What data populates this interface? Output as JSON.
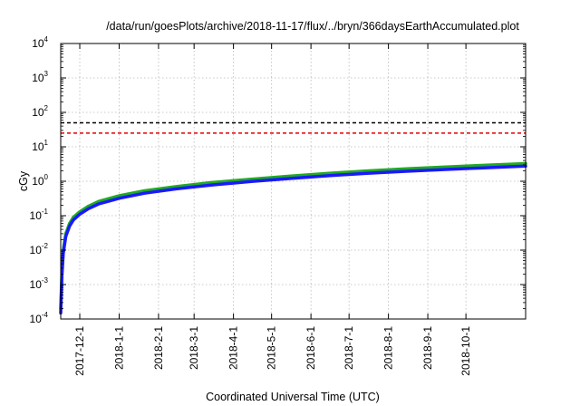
{
  "chart_data": {
    "type": "line",
    "title": "/data/run/goesPlots/archive/2018-11-17/flux/../bryn/366daysEarthAccumulated.plot",
    "xlabel": "Coordinated Universal Time (UTC)",
    "ylabel": "cGy",
    "x_range": [
      "2017-11-16",
      "2018-11-17"
    ],
    "ylim": [
      0.0001,
      10000
    ],
    "y_scale": "log",
    "grid": true,
    "x_ticks": [
      "2017-12-1",
      "2018-1-1",
      "2018-2-1",
      "2018-3-1",
      "2018-4-1",
      "2018-5-1",
      "2018-6-1",
      "2018-7-1",
      "2018-8-1",
      "2018-9-1",
      "2018-10-1"
    ],
    "y_ticks": [
      {
        "value": 0.0001,
        "base": "10",
        "exp": "-4"
      },
      {
        "value": 0.001,
        "base": "10",
        "exp": "-3"
      },
      {
        "value": 0.01,
        "base": "10",
        "exp": "-2"
      },
      {
        "value": 0.1,
        "base": "10",
        "exp": "-1"
      },
      {
        "value": 1,
        "base": "10",
        "exp": "0"
      },
      {
        "value": 10,
        "base": "10",
        "exp": "1"
      },
      {
        "value": 100,
        "base": "10",
        "exp": "2"
      },
      {
        "value": 1000,
        "base": "10",
        "exp": "3"
      },
      {
        "value": 10000,
        "base": "10",
        "exp": "4"
      }
    ],
    "series": [
      {
        "color": "#1a1aff",
        "x": [
          "2017-11-16",
          "2017-11-17",
          "2017-11-18",
          "2017-11-20",
          "2017-11-23",
          "2017-11-26",
          "2017-12-1",
          "2017-12-8",
          "2017-12-16",
          "2018-1-1",
          "2018-1-21",
          "2018-2-15",
          "2018-3-15",
          "2018-4-15",
          "2018-5-15",
          "2018-6-15",
          "2018-7-15",
          "2018-8-15",
          "2018-9-15",
          "2018-10-15",
          "2018-11-17"
        ],
        "values": [
          0.00015,
          0.002,
          0.008,
          0.025,
          0.05,
          0.075,
          0.11,
          0.16,
          0.22,
          0.32,
          0.45,
          0.6,
          0.78,
          0.98,
          1.2,
          1.45,
          1.7,
          1.95,
          2.2,
          2.45,
          2.75
        ]
      },
      {
        "color": "#22aa22",
        "x": [
          "2017-11-16",
          "2017-11-17",
          "2017-11-18",
          "2017-11-20",
          "2017-11-23",
          "2017-11-26",
          "2017-12-1",
          "2017-12-8",
          "2017-12-16",
          "2018-1-1",
          "2018-1-21",
          "2018-2-15",
          "2018-3-15",
          "2018-4-15",
          "2018-5-15",
          "2018-6-15",
          "2018-7-15",
          "2018-8-15",
          "2018-9-15",
          "2018-10-15",
          "2018-11-17"
        ],
        "values": [
          0.0002,
          0.0025,
          0.01,
          0.03,
          0.06,
          0.09,
          0.13,
          0.19,
          0.26,
          0.38,
          0.53,
          0.7,
          0.92,
          1.15,
          1.4,
          1.7,
          2.0,
          2.3,
          2.6,
          2.9,
          3.25
        ]
      }
    ],
    "reference_lines": [
      {
        "value": 50,
        "color": "#000000",
        "style": "dashed"
      },
      {
        "value": 25,
        "color": "#e00000",
        "style": "dashed"
      }
    ]
  }
}
